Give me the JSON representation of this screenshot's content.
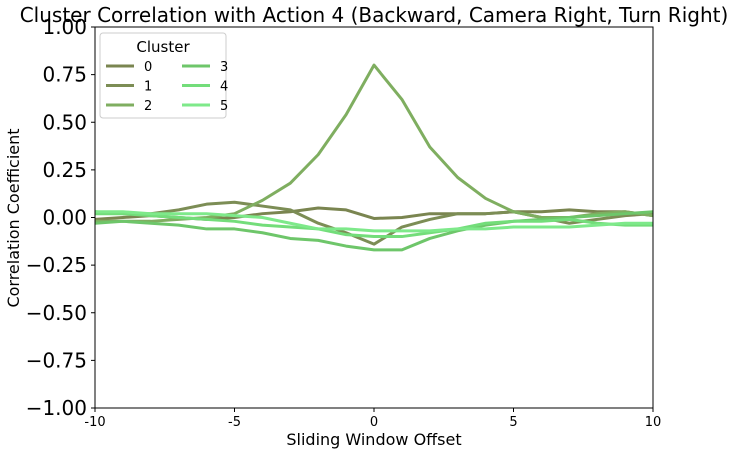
{
  "chart_data": {
    "type": "line",
    "title": "Cluster Correlation with Action 4 (Backward, Camera Right, Turn Right)",
    "xlabel": "Sliding Window Offset",
    "ylabel": "Correlation Coefficient",
    "xlim": [
      -10,
      10
    ],
    "ylim": [
      -1.0,
      1.0
    ],
    "xticks": [
      "-10",
      "-5",
      "0",
      "5",
      "10"
    ],
    "yticks": [
      "−1.00",
      "−0.75",
      "−0.50",
      "−0.25",
      "0.00",
      "0.25",
      "0.50",
      "0.75",
      "1.00"
    ],
    "grid": false,
    "legend": {
      "title": "Cluster",
      "placement": "top-left",
      "columns": 2
    },
    "x": [
      -10,
      -9,
      -8,
      -7,
      -6,
      -5,
      -4,
      -3,
      -2,
      -1,
      0,
      1,
      2,
      3,
      4,
      5,
      6,
      7,
      8,
      9,
      10
    ],
    "series": [
      {
        "name": "0",
        "color": "#7a8550",
        "values": [
          -0.01,
          0.0,
          0.01,
          0.0,
          -0.01,
          0.0,
          0.02,
          0.03,
          0.05,
          0.04,
          -0.005,
          0.0,
          0.02,
          0.02,
          0.02,
          0.03,
          0.03,
          0.04,
          0.03,
          0.03,
          0.01
        ]
      },
      {
        "name": "1",
        "color": "#7c8d55",
        "values": [
          0.03,
          0.02,
          0.02,
          0.04,
          0.07,
          0.08,
          0.06,
          0.04,
          -0.03,
          -0.08,
          -0.14,
          -0.05,
          -0.01,
          0.02,
          0.02,
          0.03,
          0.0,
          -0.03,
          -0.01,
          0.01,
          0.02
        ]
      },
      {
        "name": "2",
        "color": "#7fae60",
        "values": [
          -0.02,
          -0.02,
          -0.02,
          -0.01,
          0.0,
          0.02,
          0.09,
          0.18,
          0.33,
          0.54,
          0.8,
          0.62,
          0.37,
          0.21,
          0.1,
          0.03,
          0.0,
          0.0,
          0.02,
          0.03,
          0.01
        ]
      },
      {
        "name": "3",
        "color": "#6ec66a",
        "values": [
          -0.03,
          -0.02,
          -0.03,
          -0.04,
          -0.06,
          -0.06,
          -0.08,
          -0.11,
          -0.12,
          -0.15,
          -0.17,
          -0.17,
          -0.11,
          -0.07,
          -0.04,
          -0.02,
          -0.01,
          0.0,
          0.01,
          0.02,
          0.03
        ]
      },
      {
        "name": "4",
        "color": "#73dd7a",
        "values": [
          0.02,
          0.02,
          0.01,
          0.0,
          -0.01,
          -0.02,
          -0.04,
          -0.05,
          -0.06,
          -0.09,
          -0.1,
          -0.1,
          -0.08,
          -0.06,
          -0.03,
          -0.02,
          -0.02,
          -0.01,
          -0.03,
          -0.04,
          -0.04
        ]
      },
      {
        "name": "5",
        "color": "#7ee98a",
        "values": [
          0.03,
          0.03,
          0.02,
          0.02,
          0.02,
          0.01,
          0.0,
          -0.03,
          -0.06,
          -0.06,
          -0.07,
          -0.07,
          -0.07,
          -0.06,
          -0.06,
          -0.05,
          -0.05,
          -0.05,
          -0.04,
          -0.03,
          -0.03
        ]
      }
    ]
  }
}
